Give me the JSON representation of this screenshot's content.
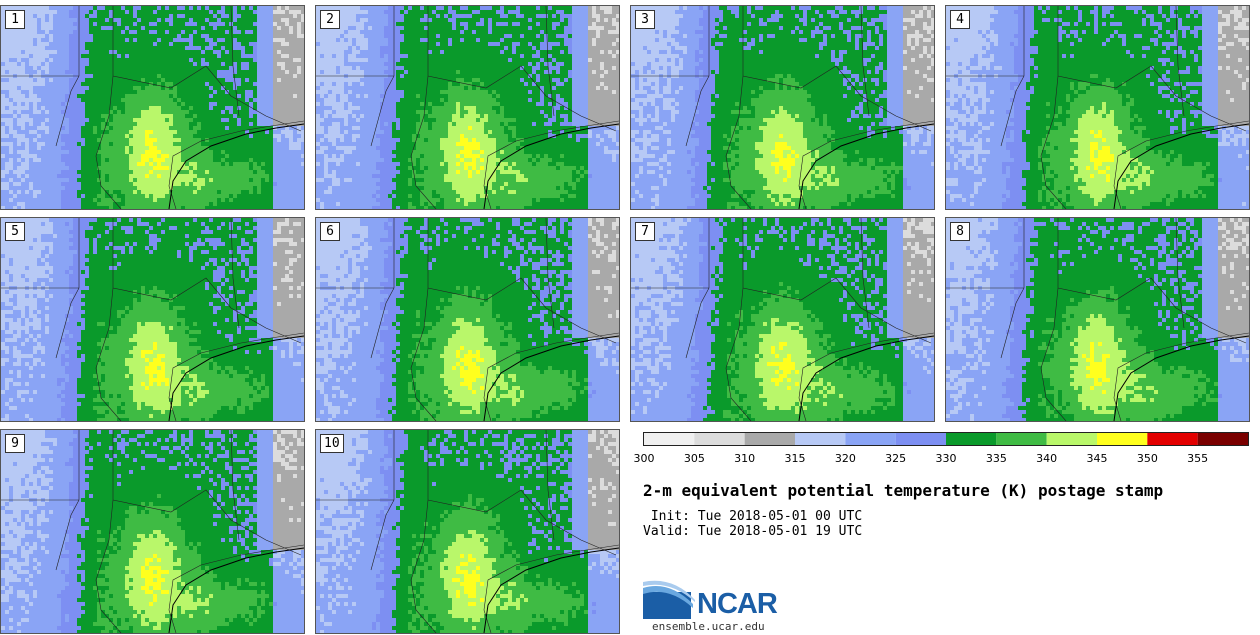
{
  "panels": [
    {
      "label": "1"
    },
    {
      "label": "2"
    },
    {
      "label": "3"
    },
    {
      "label": "4"
    },
    {
      "label": "5"
    },
    {
      "label": "6"
    },
    {
      "label": "7"
    },
    {
      "label": "8"
    },
    {
      "label": "9"
    },
    {
      "label": "10"
    }
  ],
  "colorbar": {
    "bins": [
      {
        "from": 300,
        "to": 305,
        "color": "#f0f0f0"
      },
      {
        "from": 305,
        "to": 310,
        "color": "#dcdcdc"
      },
      {
        "from": 310,
        "to": 315,
        "color": "#a9a9a9"
      },
      {
        "from": 315,
        "to": 320,
        "color": "#b7c9f5"
      },
      {
        "from": 320,
        "to": 325,
        "color": "#8aa4f5"
      },
      {
        "from": 325,
        "to": 330,
        "color": "#7d8ff2"
      },
      {
        "from": 330,
        "to": 335,
        "color": "#0a9a2b"
      },
      {
        "from": 335,
        "to": 340,
        "color": "#3fbb44"
      },
      {
        "from": 340,
        "to": 345,
        "color": "#b9f76a"
      },
      {
        "from": 345,
        "to": 350,
        "color": "#ffff1e"
      },
      {
        "from": 350,
        "to": 355,
        "color": "#e30000"
      },
      {
        "from": 355,
        "to": 360,
        "color": "#7a0000"
      }
    ],
    "tick_labels": [
      "300",
      "305",
      "310",
      "315",
      "320",
      "325",
      "330",
      "335",
      "340",
      "345",
      "350",
      "355"
    ]
  },
  "title": "2-m equivalent potential temperature (K) postage stamp",
  "init_text": " Init: Tue 2018-05-01 00 UTC",
  "valid_text": "Valid: Tue 2018-05-01 19 UTC",
  "logo": {
    "text": "NCAR",
    "url": "ensemble.ucar.edu"
  },
  "colors": {
    "brand": "#1b5ea6",
    "border": "#555555"
  }
}
